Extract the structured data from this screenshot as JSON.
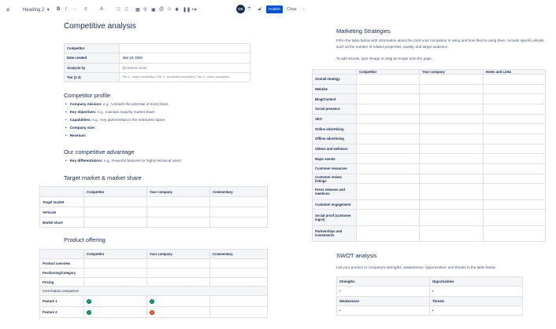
{
  "toolbar": {
    "style": "Heading 2",
    "bold": "B",
    "italic": "I",
    "more": "···",
    "align": "≡",
    "color": "A",
    "avatar": "CK",
    "publish": "Publish",
    "close": "Close",
    "overflow": "···"
  },
  "left": {
    "title": "Competitive analysis",
    "info_table": [
      [
        "Competitor",
        ""
      ],
      [
        "Date created",
        "Mar 19, 2020"
      ],
      [
        "Analysis by",
        "@mention owner"
      ],
      [
        "Tier (1-3)",
        "Tier 1 - major competitor | Tier 2 - moderate competitor | Tier 3 - minor competitor"
      ]
    ],
    "profile": {
      "heading": "Competitor profile",
      "items": [
        {
          "k": "Company mission:",
          "v": " e.g., Unleash the potential of every team"
        },
        {
          "k": "Key objectives:",
          "v": " e.g., maintain majority market share"
        },
        {
          "k": "Capabilities:",
          "v": " e.g., Key partnerships in the enterprise space"
        },
        {
          "k": "Company size:",
          "v": ""
        },
        {
          "k": "Revenue:",
          "v": ""
        }
      ]
    },
    "advantage": {
      "heading": "Our competitive advantage",
      "items": [
        {
          "k": "Key differentiators:",
          "v": " e.g., Powerful features for highly technical users"
        }
      ]
    },
    "market": {
      "heading": "Target market & market share",
      "headers": [
        "",
        "Competitor",
        "Your company",
        "Commentary"
      ],
      "rows": [
        "Target market",
        "Verticals",
        "Market share"
      ]
    },
    "product": {
      "heading": "Product offering",
      "headers": [
        "",
        "Competitor",
        "Your company",
        "Commentary"
      ],
      "rows": [
        "Product overview",
        "Positioning/Category",
        "Pricing"
      ],
      "section": "Core feature comparison",
      "features": [
        {
          "name": "Feature 1",
          "competitor": "check",
          "yours": "check"
        },
        {
          "name": "Feature 2",
          "competitor": "check",
          "yours": "cross"
        }
      ]
    }
  },
  "right": {
    "title": "Marketing Strategies",
    "intro": "Fill in the table below with information about the tools your competitor is using and how they're using them. Include specific details, such as the number of related properties, quality, and target audience.",
    "hint": "To add visuals, type /image or drag an image onto the page.",
    "headers": [
      "",
      "Competitor",
      "Your company",
      "Notes and Links"
    ],
    "rows": [
      "Overall strategy",
      "Website",
      "Blog/Content",
      "Social presence",
      "SEO",
      "Online advertising",
      "Offline advertising",
      "Videos and webinars",
      "Major events",
      "Customer resources",
      "Customer review listings",
      "Press releases and mentions",
      "Customer engagement",
      "Social proof (customer logos)",
      "Partnerships and investments"
    ],
    "swot": {
      "title": "SWOT analysis",
      "intro": "List your product or company's strengths, weaknesses, opportunities, and threats in the table below",
      "cells": [
        "Strengths",
        "Opportunities",
        "Weaknesses",
        "Threats"
      ]
    }
  },
  "colors": {
    "primary": "#0052cc",
    "success": "#00875a",
    "danger": "#de350b"
  }
}
